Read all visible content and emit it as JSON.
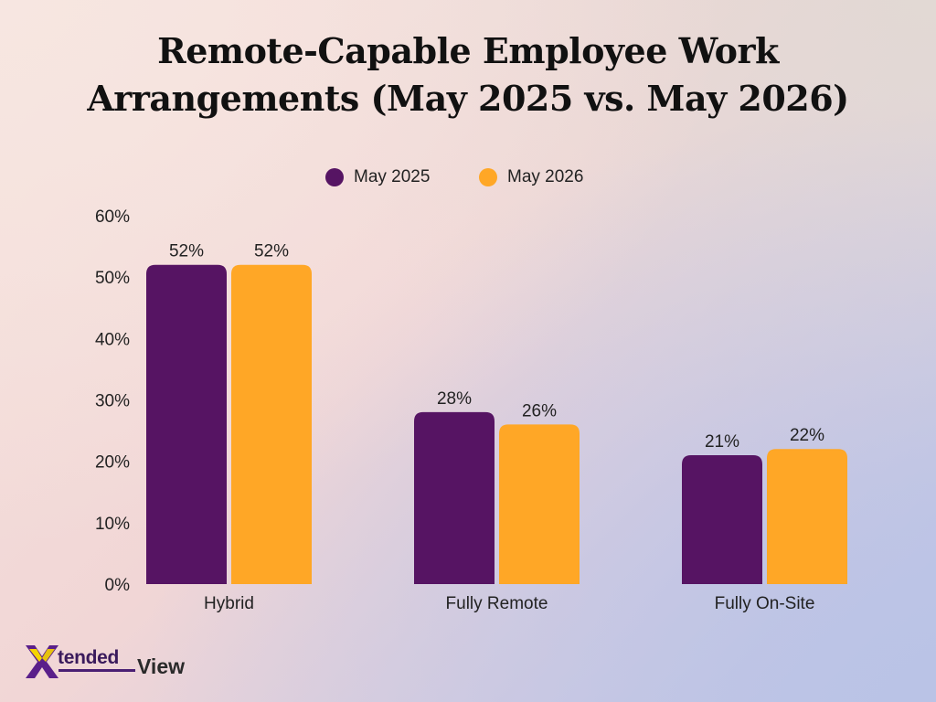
{
  "chart_data": {
    "type": "bar",
    "title": "Remote-Capable Employee Work Arrangements (May 2025 vs. May 2026)",
    "title_lines": [
      "Remote-Capable Employee Work",
      "Arrangements (May 2025 vs. May 2026)"
    ],
    "categories": [
      "Hybrid",
      "Fully Remote",
      "Fully On-Site"
    ],
    "series": [
      {
        "name": "May 2025",
        "values": [
          52,
          28,
          21
        ],
        "labels": [
          "52%",
          "28%",
          "21%"
        ],
        "color": "#561463"
      },
      {
        "name": "May 2026",
        "values": [
          52,
          26,
          22
        ],
        "labels": [
          "52%",
          "26%",
          "22%"
        ],
        "color": "#ffa726"
      }
    ],
    "ylim": [
      0,
      60
    ],
    "yticks": [
      0,
      10,
      20,
      30,
      40,
      50,
      60
    ],
    "ytick_labels": [
      "0%",
      "10%",
      "20%",
      "30%",
      "40%",
      "50%",
      "60%"
    ],
    "xlabel": "",
    "ylabel": "",
    "grid": false,
    "legend_position": "top-center"
  },
  "brand": {
    "logo_name": "XtendedView",
    "logo_part1": "tended",
    "logo_part2": "View",
    "colors": {
      "purple": "#5a1f8a",
      "yellow": "#f5d400"
    }
  }
}
